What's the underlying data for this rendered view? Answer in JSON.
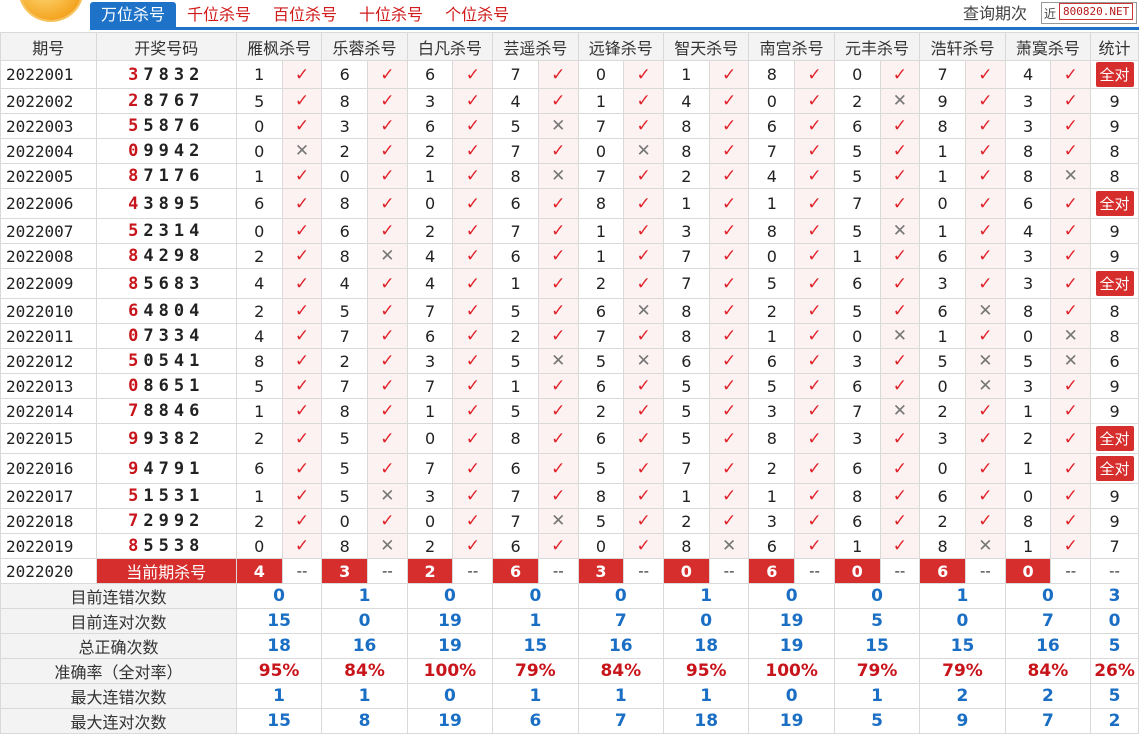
{
  "tabs": [
    {
      "label": "万位杀号",
      "active": true
    },
    {
      "label": "千位杀号",
      "active": false
    },
    {
      "label": "百位杀号",
      "active": false
    },
    {
      "label": "十位杀号",
      "active": false
    },
    {
      "label": "个位杀号",
      "active": false
    }
  ],
  "query": {
    "label": "查询期次",
    "value": "近",
    "watermark": "800820.NET"
  },
  "headers": {
    "issue": "期号",
    "numbers": "开奖号码",
    "stat": "统计",
    "experts": [
      "雁枫杀号",
      "乐蓉杀号",
      "白凡杀号",
      "芸遥杀号",
      "远锋杀号",
      "智天杀号",
      "南宫杀号",
      "元丰杀号",
      "浩轩杀号",
      "萧寞杀号"
    ]
  },
  "rows": [
    {
      "issue": "2022001",
      "num": "37832",
      "kills": [
        [
          1,
          1
        ],
        [
          6,
          1
        ],
        [
          6,
          1
        ],
        [
          7,
          1
        ],
        [
          0,
          1
        ],
        [
          1,
          1
        ],
        [
          8,
          1
        ],
        [
          0,
          1
        ],
        [
          7,
          1
        ],
        [
          4,
          1
        ]
      ],
      "stat": "全对"
    },
    {
      "issue": "2022002",
      "num": "28767",
      "kills": [
        [
          5,
          1
        ],
        [
          8,
          1
        ],
        [
          3,
          1
        ],
        [
          4,
          1
        ],
        [
          1,
          1
        ],
        [
          4,
          1
        ],
        [
          0,
          1
        ],
        [
          2,
          0
        ],
        [
          9,
          1
        ],
        [
          3,
          1
        ]
      ],
      "stat": "9"
    },
    {
      "issue": "2022003",
      "num": "55876",
      "kills": [
        [
          0,
          1
        ],
        [
          3,
          1
        ],
        [
          6,
          1
        ],
        [
          5,
          0
        ],
        [
          7,
          1
        ],
        [
          8,
          1
        ],
        [
          6,
          1
        ],
        [
          6,
          1
        ],
        [
          8,
          1
        ],
        [
          3,
          1
        ]
      ],
      "stat": "9"
    },
    {
      "issue": "2022004",
      "num": "09942",
      "kills": [
        [
          0,
          0
        ],
        [
          2,
          1
        ],
        [
          2,
          1
        ],
        [
          7,
          1
        ],
        [
          0,
          0
        ],
        [
          8,
          1
        ],
        [
          7,
          1
        ],
        [
          5,
          1
        ],
        [
          1,
          1
        ],
        [
          8,
          1
        ]
      ],
      "stat": "8"
    },
    {
      "issue": "2022005",
      "num": "87176",
      "kills": [
        [
          1,
          1
        ],
        [
          0,
          1
        ],
        [
          1,
          1
        ],
        [
          8,
          0
        ],
        [
          7,
          1
        ],
        [
          2,
          1
        ],
        [
          4,
          1
        ],
        [
          5,
          1
        ],
        [
          1,
          1
        ],
        [
          8,
          0
        ]
      ],
      "stat": "8"
    },
    {
      "issue": "2022006",
      "num": "43895",
      "kills": [
        [
          6,
          1
        ],
        [
          8,
          1
        ],
        [
          0,
          1
        ],
        [
          6,
          1
        ],
        [
          8,
          1
        ],
        [
          1,
          1
        ],
        [
          1,
          1
        ],
        [
          7,
          1
        ],
        [
          0,
          1
        ],
        [
          6,
          1
        ]
      ],
      "stat": "全对"
    },
    {
      "issue": "2022007",
      "num": "52314",
      "kills": [
        [
          0,
          1
        ],
        [
          6,
          1
        ],
        [
          2,
          1
        ],
        [
          7,
          1
        ],
        [
          1,
          1
        ],
        [
          3,
          1
        ],
        [
          8,
          1
        ],
        [
          5,
          0
        ],
        [
          1,
          1
        ],
        [
          4,
          1
        ]
      ],
      "stat": "9"
    },
    {
      "issue": "2022008",
      "num": "84298",
      "kills": [
        [
          2,
          1
        ],
        [
          8,
          0
        ],
        [
          4,
          1
        ],
        [
          6,
          1
        ],
        [
          1,
          1
        ],
        [
          7,
          1
        ],
        [
          0,
          1
        ],
        [
          1,
          1
        ],
        [
          6,
          1
        ],
        [
          3,
          1
        ]
      ],
      "stat": "9"
    },
    {
      "issue": "2022009",
      "num": "85683",
      "kills": [
        [
          4,
          1
        ],
        [
          4,
          1
        ],
        [
          4,
          1
        ],
        [
          1,
          1
        ],
        [
          2,
          1
        ],
        [
          7,
          1
        ],
        [
          5,
          1
        ],
        [
          6,
          1
        ],
        [
          3,
          1
        ],
        [
          3,
          1
        ]
      ],
      "stat": "全对"
    },
    {
      "issue": "2022010",
      "num": "64804",
      "kills": [
        [
          2,
          1
        ],
        [
          5,
          1
        ],
        [
          7,
          1
        ],
        [
          5,
          1
        ],
        [
          6,
          0
        ],
        [
          8,
          1
        ],
        [
          2,
          1
        ],
        [
          5,
          1
        ],
        [
          6,
          0
        ],
        [
          8,
          1
        ]
      ],
      "stat": "8"
    },
    {
      "issue": "2022011",
      "num": "07334",
      "kills": [
        [
          4,
          1
        ],
        [
          7,
          1
        ],
        [
          6,
          1
        ],
        [
          2,
          1
        ],
        [
          7,
          1
        ],
        [
          8,
          1
        ],
        [
          1,
          1
        ],
        [
          0,
          0
        ],
        [
          1,
          1
        ],
        [
          0,
          0
        ]
      ],
      "stat": "8"
    },
    {
      "issue": "2022012",
      "num": "50541",
      "kills": [
        [
          8,
          1
        ],
        [
          2,
          1
        ],
        [
          3,
          1
        ],
        [
          5,
          0
        ],
        [
          5,
          0
        ],
        [
          6,
          1
        ],
        [
          6,
          1
        ],
        [
          3,
          1
        ],
        [
          5,
          0
        ],
        [
          5,
          0
        ]
      ],
      "stat": "6"
    },
    {
      "issue": "2022013",
      "num": "08651",
      "kills": [
        [
          5,
          1
        ],
        [
          7,
          1
        ],
        [
          7,
          1
        ],
        [
          1,
          1
        ],
        [
          6,
          1
        ],
        [
          5,
          1
        ],
        [
          5,
          1
        ],
        [
          6,
          1
        ],
        [
          0,
          0
        ],
        [
          3,
          1
        ]
      ],
      "stat": "9"
    },
    {
      "issue": "2022014",
      "num": "78846",
      "kills": [
        [
          1,
          1
        ],
        [
          8,
          1
        ],
        [
          1,
          1
        ],
        [
          5,
          1
        ],
        [
          2,
          1
        ],
        [
          5,
          1
        ],
        [
          3,
          1
        ],
        [
          7,
          0
        ],
        [
          2,
          1
        ],
        [
          1,
          1
        ]
      ],
      "stat": "9"
    },
    {
      "issue": "2022015",
      "num": "99382",
      "kills": [
        [
          2,
          1
        ],
        [
          5,
          1
        ],
        [
          0,
          1
        ],
        [
          8,
          1
        ],
        [
          6,
          1
        ],
        [
          5,
          1
        ],
        [
          8,
          1
        ],
        [
          3,
          1
        ],
        [
          3,
          1
        ],
        [
          2,
          1
        ]
      ],
      "stat": "全对"
    },
    {
      "issue": "2022016",
      "num": "94791",
      "kills": [
        [
          6,
          1
        ],
        [
          5,
          1
        ],
        [
          7,
          1
        ],
        [
          6,
          1
        ],
        [
          5,
          1
        ],
        [
          7,
          1
        ],
        [
          2,
          1
        ],
        [
          6,
          1
        ],
        [
          0,
          1
        ],
        [
          1,
          1
        ]
      ],
      "stat": "全对"
    },
    {
      "issue": "2022017",
      "num": "51531",
      "kills": [
        [
          1,
          1
        ],
        [
          5,
          0
        ],
        [
          3,
          1
        ],
        [
          7,
          1
        ],
        [
          8,
          1
        ],
        [
          1,
          1
        ],
        [
          1,
          1
        ],
        [
          8,
          1
        ],
        [
          6,
          1
        ],
        [
          0,
          1
        ]
      ],
      "stat": "9"
    },
    {
      "issue": "2022018",
      "num": "72992",
      "kills": [
        [
          2,
          1
        ],
        [
          0,
          1
        ],
        [
          0,
          1
        ],
        [
          7,
          0
        ],
        [
          5,
          1
        ],
        [
          2,
          1
        ],
        [
          3,
          1
        ],
        [
          6,
          1
        ],
        [
          2,
          1
        ],
        [
          8,
          1
        ]
      ],
      "stat": "9"
    },
    {
      "issue": "2022019",
      "num": "85538",
      "kills": [
        [
          0,
          1
        ],
        [
          8,
          0
        ],
        [
          2,
          1
        ],
        [
          6,
          1
        ],
        [
          0,
          1
        ],
        [
          8,
          0
        ],
        [
          6,
          1
        ],
        [
          1,
          1
        ],
        [
          8,
          0
        ],
        [
          1,
          1
        ]
      ],
      "stat": "7"
    }
  ],
  "current": {
    "issue": "2022020",
    "label": "当前期杀号",
    "kills": [
      4,
      3,
      2,
      6,
      3,
      0,
      6,
      0,
      6,
      0
    ],
    "dash": "--",
    "stat": "--"
  },
  "stats": [
    {
      "label": "目前连错次数",
      "values": [
        "0",
        "1",
        "0",
        "0",
        "0",
        "1",
        "0",
        "0",
        "1",
        "0"
      ],
      "total": "3",
      "color": "blue"
    },
    {
      "label": "目前连对次数",
      "values": [
        "15",
        "0",
        "19",
        "1",
        "7",
        "0",
        "19",
        "5",
        "0",
        "7"
      ],
      "total": "0",
      "color": "blue"
    },
    {
      "label": "总正确次数",
      "values": [
        "18",
        "16",
        "19",
        "15",
        "16",
        "18",
        "19",
        "15",
        "15",
        "16"
      ],
      "total": "5",
      "color": "blue"
    },
    {
      "label": "准确率（全对率）",
      "values": [
        "95%",
        "84%",
        "100%",
        "79%",
        "84%",
        "95%",
        "100%",
        "79%",
        "79%",
        "84%"
      ],
      "total": "26%",
      "color": "red"
    },
    {
      "label": "最大连错次数",
      "values": [
        "1",
        "1",
        "0",
        "1",
        "1",
        "1",
        "0",
        "1",
        "2",
        "2"
      ],
      "total": "5",
      "color": "blue"
    },
    {
      "label": "最大连对次数",
      "values": [
        "15",
        "8",
        "19",
        "6",
        "7",
        "18",
        "19",
        "5",
        "9",
        "7"
      ],
      "total": "2",
      "color": "blue"
    }
  ],
  "marks": {
    "ok": "✓",
    "bad": "✕"
  },
  "colors": {
    "tab_active": "#1e73c8",
    "red": "#d62d2d",
    "blue": "#1a6fc4"
  }
}
